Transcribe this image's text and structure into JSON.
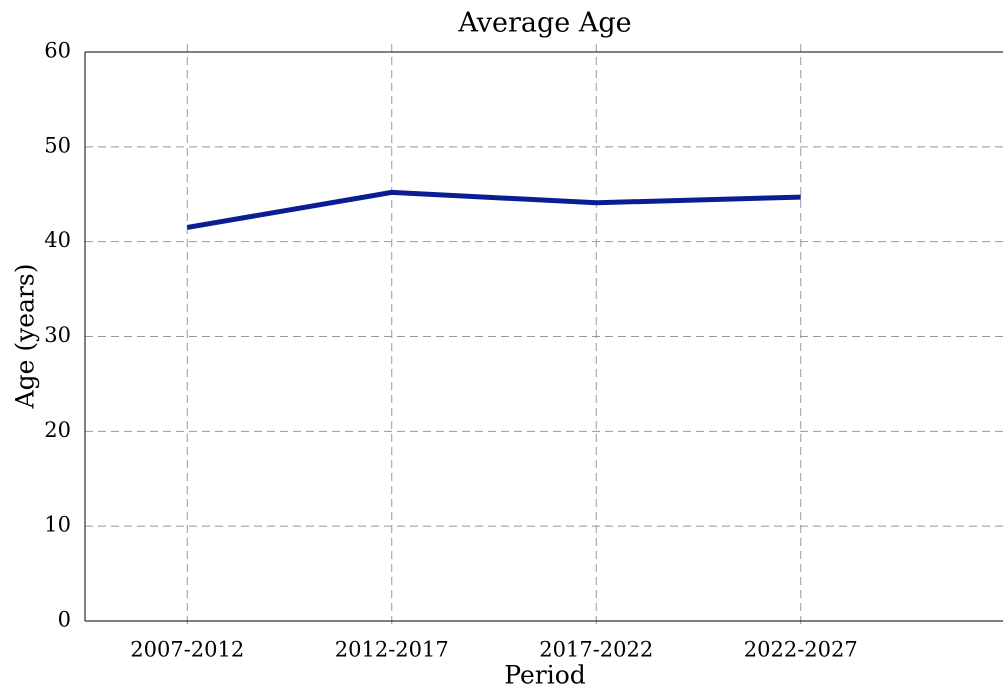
{
  "chart_data": {
    "type": "line",
    "title": "Average Age",
    "x_label": "Period",
    "y_label": "Age (years)",
    "categories": [
      "2007-2012",
      "2012-2017",
      "2017-2022",
      "2022-2027"
    ],
    "series": [
      {
        "name": "Average Age",
        "color": "#0b1d93",
        "values": [
          41.5,
          45.2,
          44.1,
          44.7
        ]
      }
    ],
    "ylim": [
      0,
      60
    ],
    "yticks": [
      0,
      10,
      20,
      30,
      40,
      50,
      60
    ],
    "grid": true
  }
}
